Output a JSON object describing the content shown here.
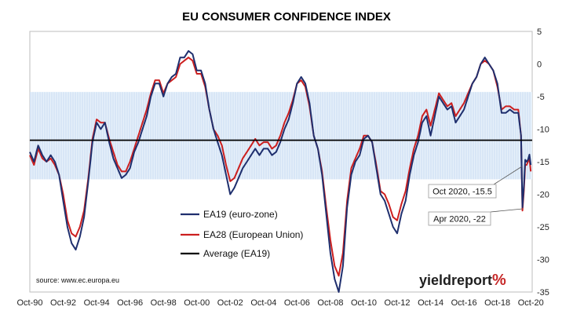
{
  "chart_data": {
    "type": "line",
    "title": "EU CONSUMER CONFIDENCE INDEX",
    "ylim": [
      -35,
      5
    ],
    "yticks": [
      5,
      0,
      -5,
      -10,
      -15,
      -20,
      -25,
      -30,
      -35
    ],
    "xlim": [
      "1990-10",
      "2020-11"
    ],
    "xticks": [
      "Oct-90",
      "Oct-92",
      "Oct-94",
      "Oct-96",
      "Oct-98",
      "Oct-00",
      "Oct-02",
      "Oct-04",
      "Oct-06",
      "Oct-08",
      "Oct-10",
      "Oct-12",
      "Oct-14",
      "Oct-16",
      "Oct-18",
      "Oct-20"
    ],
    "grid": false,
    "legend_position": "bottom-left",
    "band": {
      "from": -17.7,
      "to": -4.3
    },
    "series": [
      {
        "name": "EA19 (euro-zone)",
        "color": "#1f2f6e",
        "points": [
          [
            "1990-10",
            -13.5
          ],
          [
            "1991-01",
            -15
          ],
          [
            "1991-04",
            -12.5
          ],
          [
            "1991-07",
            -14
          ],
          [
            "1991-10",
            -15
          ],
          [
            "1992-01",
            -14
          ],
          [
            "1992-04",
            -15
          ],
          [
            "1992-07",
            -17
          ],
          [
            "1992-10",
            -21
          ],
          [
            "1993-01",
            -25
          ],
          [
            "1993-04",
            -27.5
          ],
          [
            "1993-07",
            -28.5
          ],
          [
            "1993-10",
            -26.5
          ],
          [
            "1994-01",
            -23.5
          ],
          [
            "1994-04",
            -18
          ],
          [
            "1994-07",
            -12
          ],
          [
            "1994-10",
            -9
          ],
          [
            "1995-01",
            -10
          ],
          [
            "1995-04",
            -9
          ],
          [
            "1995-07",
            -12
          ],
          [
            "1995-10",
            -14.5
          ],
          [
            "1996-01",
            -16
          ],
          [
            "1996-04",
            -17.5
          ],
          [
            "1996-07",
            -17
          ],
          [
            "1996-10",
            -16
          ],
          [
            "1997-01",
            -13.5
          ],
          [
            "1997-04",
            -12
          ],
          [
            "1997-07",
            -10
          ],
          [
            "1997-10",
            -8
          ],
          [
            "1998-01",
            -5
          ],
          [
            "1998-04",
            -3
          ],
          [
            "1998-07",
            -3
          ],
          [
            "1998-10",
            -5
          ],
          [
            "1999-01",
            -3
          ],
          [
            "1999-04",
            -2
          ],
          [
            "1999-07",
            -1.5
          ],
          [
            "1999-10",
            1
          ],
          [
            "2000-01",
            1
          ],
          [
            "2000-04",
            2
          ],
          [
            "2000-07",
            1.5
          ],
          [
            "2000-10",
            -1
          ],
          [
            "2001-01",
            -1
          ],
          [
            "2001-04",
            -3
          ],
          [
            "2001-07",
            -7
          ],
          [
            "2001-10",
            -10
          ],
          [
            "2002-01",
            -12
          ],
          [
            "2002-04",
            -14
          ],
          [
            "2002-07",
            -17
          ],
          [
            "2002-10",
            -20
          ],
          [
            "2003-01",
            -19
          ],
          [
            "2003-04",
            -17.5
          ],
          [
            "2003-07",
            -16
          ],
          [
            "2003-10",
            -15
          ],
          [
            "2004-01",
            -14
          ],
          [
            "2004-04",
            -13
          ],
          [
            "2004-07",
            -14
          ],
          [
            "2004-10",
            -13
          ],
          [
            "2005-01",
            -13
          ],
          [
            "2005-04",
            -14
          ],
          [
            "2005-07",
            -13.5
          ],
          [
            "2005-10",
            -12
          ],
          [
            "2006-01",
            -10
          ],
          [
            "2006-04",
            -8.5
          ],
          [
            "2006-07",
            -6
          ],
          [
            "2006-10",
            -3
          ],
          [
            "2007-01",
            -2
          ],
          [
            "2007-04",
            -3
          ],
          [
            "2007-07",
            -6
          ],
          [
            "2007-10",
            -11
          ],
          [
            "2008-01",
            -13
          ],
          [
            "2008-04",
            -17
          ],
          [
            "2008-07",
            -23
          ],
          [
            "2008-10",
            -29
          ],
          [
            "2009-01",
            -33
          ],
          [
            "2009-04",
            -35
          ],
          [
            "2009-07",
            -31
          ],
          [
            "2009-10",
            -22
          ],
          [
            "2010-01",
            -17
          ],
          [
            "2010-04",
            -15
          ],
          [
            "2010-07",
            -14
          ],
          [
            "2010-10",
            -11.5
          ],
          [
            "2011-01",
            -11
          ],
          [
            "2011-04",
            -12
          ],
          [
            "2011-07",
            -16
          ],
          [
            "2011-10",
            -20
          ],
          [
            "2012-01",
            -21
          ],
          [
            "2012-04",
            -23
          ],
          [
            "2012-07",
            -25
          ],
          [
            "2012-10",
            -26
          ],
          [
            "2013-01",
            -23
          ],
          [
            "2013-04",
            -21
          ],
          [
            "2013-07",
            -17
          ],
          [
            "2013-10",
            -14
          ],
          [
            "2014-01",
            -12
          ],
          [
            "2014-04",
            -9
          ],
          [
            "2014-07",
            -8
          ],
          [
            "2014-10",
            -11
          ],
          [
            "2015-01",
            -8
          ],
          [
            "2015-04",
            -5
          ],
          [
            "2015-07",
            -6
          ],
          [
            "2015-10",
            -7
          ],
          [
            "2016-01",
            -6.5
          ],
          [
            "2016-04",
            -9
          ],
          [
            "2016-07",
            -8
          ],
          [
            "2016-10",
            -7
          ],
          [
            "2017-01",
            -5
          ],
          [
            "2017-04",
            -3
          ],
          [
            "2017-07",
            -2
          ],
          [
            "2017-10",
            0
          ],
          [
            "2018-01",
            1
          ],
          [
            "2018-04",
            0
          ],
          [
            "2018-07",
            -1
          ],
          [
            "2018-10",
            -3
          ],
          [
            "2019-01",
            -7.5
          ],
          [
            "2019-04",
            -7.5
          ],
          [
            "2019-07",
            -7
          ],
          [
            "2019-10",
            -7.5
          ],
          [
            "2020-01",
            -7.5
          ],
          [
            "2020-03",
            -11
          ],
          [
            "2020-04",
            -22
          ],
          [
            "2020-05",
            -18.8
          ],
          [
            "2020-06",
            -14.7
          ],
          [
            "2020-07",
            -15
          ],
          [
            "2020-08",
            -14.7
          ],
          [
            "2020-09",
            -13.9
          ],
          [
            "2020-10",
            -15.5
          ]
        ]
      },
      {
        "name": "EA28 (European Union)",
        "color": "#cc1f1f",
        "points": [
          [
            "1990-10",
            -14
          ],
          [
            "1991-01",
            -15.5
          ],
          [
            "1991-04",
            -13
          ],
          [
            "1991-07",
            -14.5
          ],
          [
            "1991-10",
            -15
          ],
          [
            "1992-01",
            -14.5
          ],
          [
            "1992-04",
            -15.5
          ],
          [
            "1992-07",
            -17
          ],
          [
            "1992-10",
            -20
          ],
          [
            "1993-01",
            -24
          ],
          [
            "1993-04",
            -26
          ],
          [
            "1993-07",
            -26.5
          ],
          [
            "1993-10",
            -25
          ],
          [
            "1994-01",
            -22.5
          ],
          [
            "1994-04",
            -17.5
          ],
          [
            "1994-07",
            -11.5
          ],
          [
            "1994-10",
            -8.5
          ],
          [
            "1995-01",
            -9
          ],
          [
            "1995-04",
            -9
          ],
          [
            "1995-07",
            -11.5
          ],
          [
            "1995-10",
            -13.5
          ],
          [
            "1996-01",
            -15.5
          ],
          [
            "1996-04",
            -16.5
          ],
          [
            "1996-07",
            -16.5
          ],
          [
            "1996-10",
            -15
          ],
          [
            "1997-01",
            -13
          ],
          [
            "1997-04",
            -11
          ],
          [
            "1997-07",
            -9
          ],
          [
            "1997-10",
            -7
          ],
          [
            "1998-01",
            -4.5
          ],
          [
            "1998-04",
            -2.5
          ],
          [
            "1998-07",
            -2.5
          ],
          [
            "1998-10",
            -4.5
          ],
          [
            "1999-01",
            -3
          ],
          [
            "1999-04",
            -2.5
          ],
          [
            "1999-07",
            -2
          ],
          [
            "1999-10",
            0
          ],
          [
            "2000-01",
            0.5
          ],
          [
            "2000-04",
            1
          ],
          [
            "2000-07",
            0.5
          ],
          [
            "2000-10",
            -1.5
          ],
          [
            "2001-01",
            -1.5
          ],
          [
            "2001-04",
            -3.5
          ],
          [
            "2001-07",
            -7
          ],
          [
            "2001-10",
            -10
          ],
          [
            "2002-01",
            -11
          ],
          [
            "2002-04",
            -12.5
          ],
          [
            "2002-07",
            -15.5
          ],
          [
            "2002-10",
            -18
          ],
          [
            "2003-01",
            -17.5
          ],
          [
            "2003-04",
            -16
          ],
          [
            "2003-07",
            -14.5
          ],
          [
            "2003-10",
            -13.5
          ],
          [
            "2004-01",
            -12.5
          ],
          [
            "2004-04",
            -11.5
          ],
          [
            "2004-07",
            -12.5
          ],
          [
            "2004-10",
            -12
          ],
          [
            "2005-01",
            -12
          ],
          [
            "2005-04",
            -13
          ],
          [
            "2005-07",
            -12.5
          ],
          [
            "2005-10",
            -11
          ],
          [
            "2006-01",
            -9
          ],
          [
            "2006-04",
            -7.5
          ],
          [
            "2006-07",
            -5.5
          ],
          [
            "2006-10",
            -3
          ],
          [
            "2007-01",
            -2.5
          ],
          [
            "2007-04",
            -3.5
          ],
          [
            "2007-07",
            -6.5
          ],
          [
            "2007-10",
            -11
          ],
          [
            "2008-01",
            -13
          ],
          [
            "2008-04",
            -16.5
          ],
          [
            "2008-07",
            -22
          ],
          [
            "2008-10",
            -27
          ],
          [
            "2009-01",
            -31
          ],
          [
            "2009-04",
            -32.5
          ],
          [
            "2009-07",
            -29
          ],
          [
            "2009-10",
            -21
          ],
          [
            "2010-01",
            -16
          ],
          [
            "2010-04",
            -14.5
          ],
          [
            "2010-07",
            -13
          ],
          [
            "2010-10",
            -11
          ],
          [
            "2011-01",
            -11
          ],
          [
            "2011-04",
            -12
          ],
          [
            "2011-07",
            -15.5
          ],
          [
            "2011-10",
            -19.5
          ],
          [
            "2012-01",
            -20
          ],
          [
            "2012-04",
            -21.5
          ],
          [
            "2012-07",
            -23.5
          ],
          [
            "2012-10",
            -24
          ],
          [
            "2013-01",
            -21.5
          ],
          [
            "2013-04",
            -19.5
          ],
          [
            "2013-07",
            -16
          ],
          [
            "2013-10",
            -13
          ],
          [
            "2014-01",
            -11
          ],
          [
            "2014-04",
            -8
          ],
          [
            "2014-07",
            -7
          ],
          [
            "2014-10",
            -9.5
          ],
          [
            "2015-01",
            -7
          ],
          [
            "2015-04",
            -4.5
          ],
          [
            "2015-07",
            -5.5
          ],
          [
            "2015-10",
            -6.5
          ],
          [
            "2016-01",
            -6
          ],
          [
            "2016-04",
            -8
          ],
          [
            "2016-07",
            -7
          ],
          [
            "2016-10",
            -6
          ],
          [
            "2017-01",
            -4.5
          ],
          [
            "2017-04",
            -3
          ],
          [
            "2017-07",
            -2
          ],
          [
            "2017-10",
            0
          ],
          [
            "2018-01",
            0.5
          ],
          [
            "2018-04",
            0
          ],
          [
            "2018-07",
            -1
          ],
          [
            "2018-10",
            -3.5
          ],
          [
            "2019-01",
            -7
          ],
          [
            "2019-04",
            -6.5
          ],
          [
            "2019-07",
            -6.5
          ],
          [
            "2019-10",
            -7
          ],
          [
            "2020-01",
            -7
          ],
          [
            "2020-03",
            -11
          ],
          [
            "2020-04",
            -22.5
          ],
          [
            "2020-05",
            -19.5
          ],
          [
            "2020-06",
            -15.5
          ],
          [
            "2020-07",
            -15.5
          ],
          [
            "2020-08",
            -15
          ],
          [
            "2020-09",
            -14.5
          ],
          [
            "2020-10",
            -16.5
          ]
        ]
      },
      {
        "name": "Average (EA19)",
        "color": "#000000",
        "points": [
          [
            "1990-10",
            -11.7
          ],
          [
            "2020-11",
            -11.7
          ]
        ]
      }
    ],
    "annotations": [
      {
        "text": "Oct 2020, -15.5",
        "x": "2020-10",
        "y": -15.5
      },
      {
        "text": "Apr 2020, -22",
        "x": "2020-04",
        "y": -22
      }
    ],
    "source": "source: www.ec.europa.eu",
    "logo": "yieldreport%"
  }
}
